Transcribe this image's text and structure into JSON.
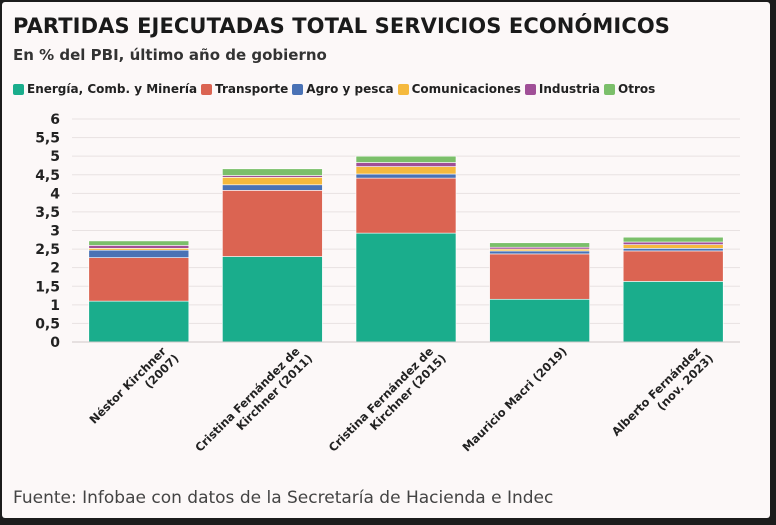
{
  "chart_data": {
    "type": "bar",
    "stacked": true,
    "title": "PARTIDAS EJECUTADAS TOTAL SERVICIOS ECONÓMICOS",
    "subtitle": "En % del PBI, último año de gobierno",
    "xlabel": "",
    "ylabel": "",
    "ylim": [
      0,
      6
    ],
    "yticks": [
      {
        "v": 0,
        "label": "0"
      },
      {
        "v": 0.5,
        "label": "0,5"
      },
      {
        "v": 1,
        "label": "1"
      },
      {
        "v": 1.5,
        "label": "1,5"
      },
      {
        "v": 2,
        "label": "2"
      },
      {
        "v": 2.5,
        "label": "2,5"
      },
      {
        "v": 3,
        "label": "3"
      },
      {
        "v": 3.5,
        "label": "3,5"
      },
      {
        "v": 4,
        "label": "4"
      },
      {
        "v": 4.5,
        "label": "4,5"
      },
      {
        "v": 5,
        "label": "5"
      },
      {
        "v": 5.5,
        "label": "5,5"
      },
      {
        "v": 6,
        "label": "6"
      }
    ],
    "categories": [
      [
        "Néstor Kirchner",
        "(2007)"
      ],
      [
        "Cristina Fernández de",
        "Kirchner (2011)"
      ],
      [
        "Cristina Fernández de",
        "Kirchner (2015)"
      ],
      [
        "Mauricio Macri (2019)"
      ],
      [
        "Alberto Fernández",
        "(nov. 2023)"
      ]
    ],
    "series": [
      {
        "name": "Energía, Comb. y Minería",
        "color": "#1aad8c",
        "values": [
          1.1,
          2.3,
          2.93,
          1.15,
          1.63
        ]
      },
      {
        "name": "Transporte",
        "color": "#db6452",
        "values": [
          1.17,
          1.78,
          1.48,
          1.22,
          0.82
        ]
      },
      {
        "name": "Agro y pesca",
        "color": "#4a72b5",
        "values": [
          0.2,
          0.15,
          0.11,
          0.08,
          0.07
        ]
      },
      {
        "name": "Comunicaciones",
        "color": "#f5b93d",
        "values": [
          0.05,
          0.2,
          0.2,
          0.05,
          0.1
        ]
      },
      {
        "name": "Industria",
        "color": "#a04f97",
        "values": [
          0.08,
          0.05,
          0.11,
          0.05,
          0.07
        ]
      },
      {
        "name": "Otros",
        "color": "#7bbf6a",
        "values": [
          0.12,
          0.18,
          0.17,
          0.12,
          0.13
        ]
      }
    ]
  },
  "footer": "Fuente: Infobae con datos de la Secretaría de Hacienda e Indec"
}
